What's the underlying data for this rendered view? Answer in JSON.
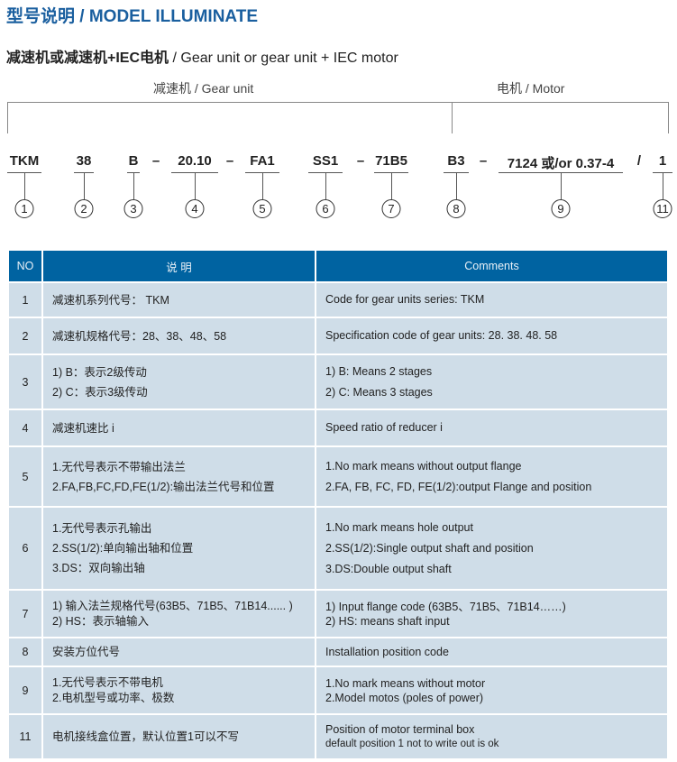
{
  "title": "型号说明 / MODEL ILLUMINATE",
  "subtitle_cn": "减速机或减速机+IEC电机",
  "subtitle_en": " / Gear unit or gear unit + IEC motor",
  "group_gear": "减速机 / Gear unit",
  "group_motor": "电机 / Motor",
  "codes": [
    {
      "text": "TKM",
      "num": "①"
    },
    {
      "text": "38",
      "num": "②"
    },
    {
      "text": "B",
      "num": "③"
    },
    {
      "text": "20.10",
      "num": "④"
    },
    {
      "text": "FA1",
      "num": "⑤"
    },
    {
      "text": "SS1",
      "num": "⑥"
    },
    {
      "text": "71B5",
      "num": "⑦"
    },
    {
      "text": "B3",
      "num": "⑧"
    },
    {
      "text": "7124 或/or 0.37-4",
      "num": "⑨"
    },
    {
      "text": "1",
      "num": "⑪"
    }
  ],
  "separators": [
    "–",
    "–",
    "–",
    "–",
    "/"
  ],
  "table": {
    "headers": [
      "NO",
      "说  明",
      "Comments"
    ],
    "rows": [
      {
        "no": "1",
        "cn": [
          "减速机系列代号： TKM"
        ],
        "en": [
          "Code for gear units series: TKM"
        ]
      },
      {
        "no": "2",
        "cn": [
          "减速机规格代号：28、38、48、58"
        ],
        "en": [
          "Specification code of gear units: 28. 38. 48. 58"
        ]
      },
      {
        "no": "3",
        "cn": [
          "1) B：表示2级传动",
          "2) C：表示3级传动"
        ],
        "en": [
          "1) B: Means 2 stages",
          "2) C: Means 3 stages"
        ]
      },
      {
        "no": "4",
        "cn": [
          "减速机速比 i"
        ],
        "en": [
          "Speed ratio of reducer i"
        ]
      },
      {
        "no": "5",
        "cn": [
          "1.无代号表示不带输出法兰",
          "2.FA,FB,FC,FD,FE(1/2):输出法兰代号和位置"
        ],
        "en": [
          "1.No mark means without output flange",
          "2.FA, FB, FC, FD, FE(1/2):output Flange and position"
        ]
      },
      {
        "no": "6",
        "cn": [
          "1.无代号表示孔输出",
          "2.SS(1/2):单向输出轴和位置",
          "3.DS：双向输出轴"
        ],
        "en": [
          "1.No mark means hole output",
          "2.SS(1/2):Single output shaft and position",
          "3.DS:Double output shaft"
        ]
      },
      {
        "no": "7",
        "cn": [
          "1) 输入法兰规格代号(63B5、71B5、71B14...... )",
          "2) HS：表示轴输入"
        ],
        "en": [
          "1) Input flange code (63B5、71B5、71B14……)",
          "2) HS: means shaft input"
        ]
      },
      {
        "no": "8",
        "cn": [
          "安装方位代号"
        ],
        "en": [
          "Installation position code"
        ]
      },
      {
        "no": "9",
        "cn": [
          "1.无代号表示不带电机",
          "2.电机型号或功率、极数"
        ],
        "en": [
          "1.No mark means without motor",
          "2.Model motos (poles of power)"
        ]
      },
      {
        "no": "11",
        "cn": [
          "电机接线盒位置，默认位置1可以不写"
        ],
        "en": [
          "Position of motor terminal box",
          "default position 1 not to write out is ok"
        ]
      }
    ]
  }
}
